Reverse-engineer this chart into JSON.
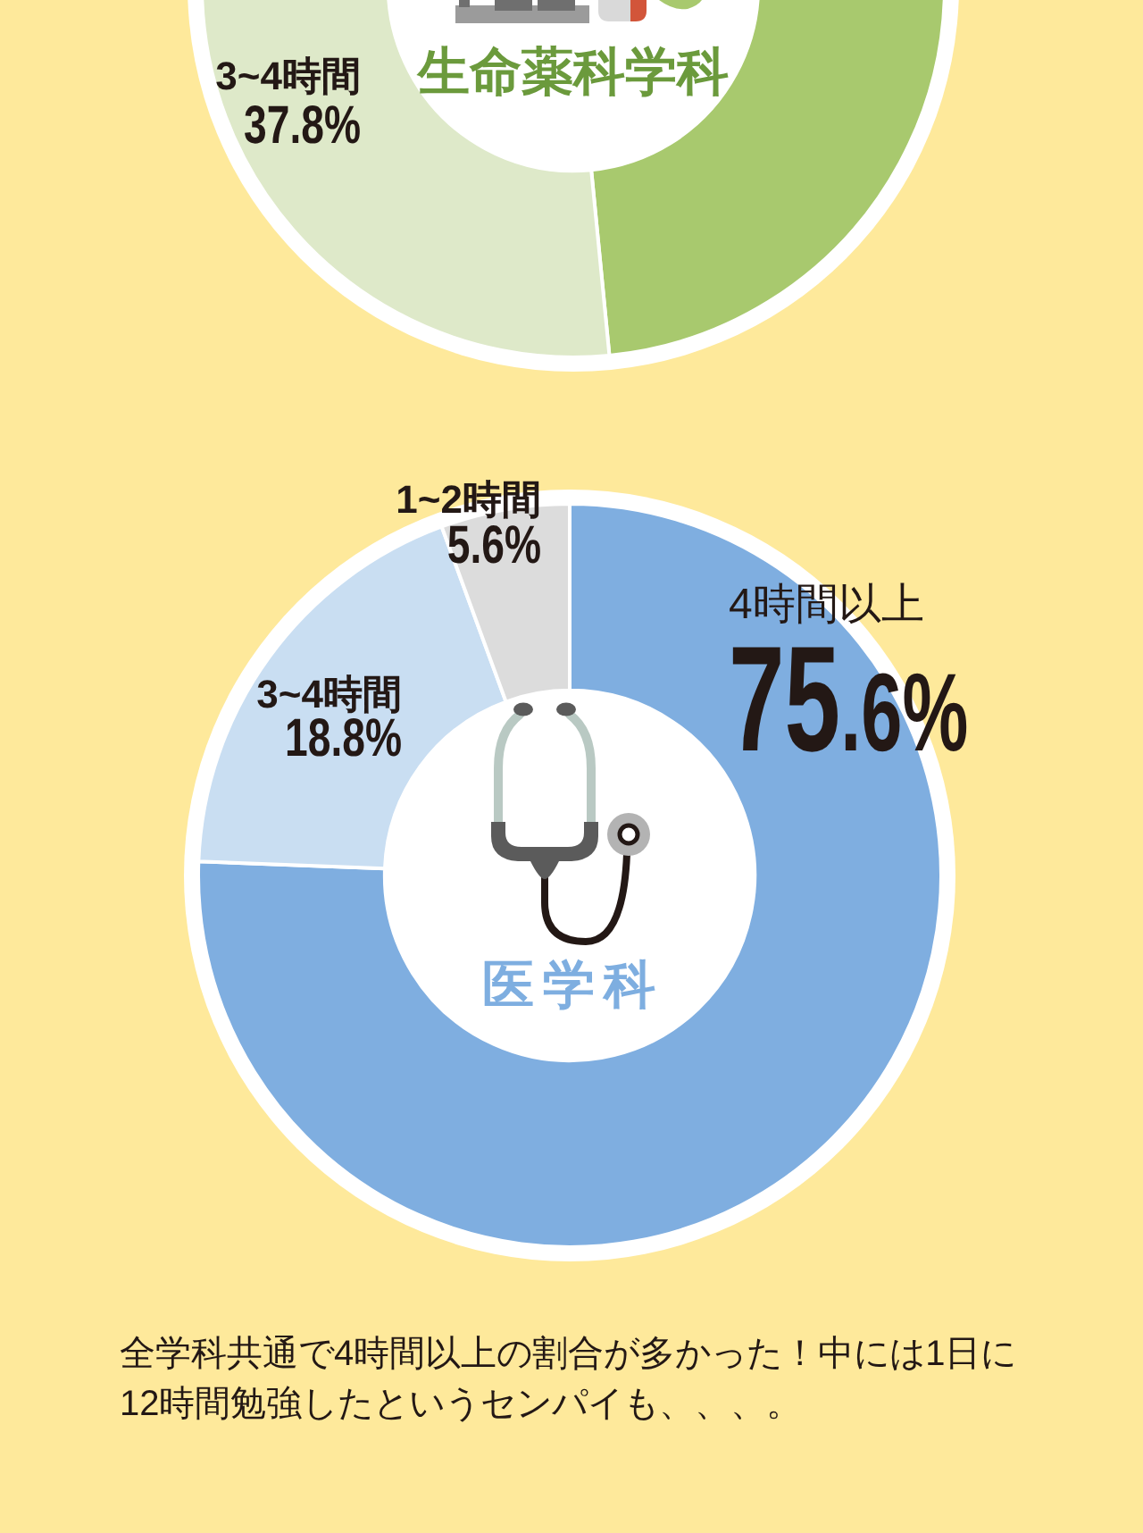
{
  "chart_data": [
    {
      "type": "donut",
      "title": "生命薬科学科",
      "categories": [
        null,
        "3~4時間"
      ],
      "values": [
        62.2,
        37.8
      ],
      "colors": [
        "#a8c96e",
        "#dee9c9"
      ],
      "value_labels": [
        null,
        "37.8%"
      ]
    },
    {
      "type": "donut",
      "title": "医学科",
      "categories": [
        "4時間以上",
        "3~4時間",
        "1~2時間"
      ],
      "values": [
        75.6,
        18.8,
        5.6
      ],
      "colors": [
        "#7faee0",
        "#c9def2",
        "#dcdcdc"
      ],
      "value_labels": [
        "75.6%",
        "18.8%",
        "5.6%"
      ],
      "annotations": [
        "全学科共通で4時間以上の割合が多かった！中には1日に12時間勉強したというセンパイも、、、。"
      ]
    }
  ]
}
